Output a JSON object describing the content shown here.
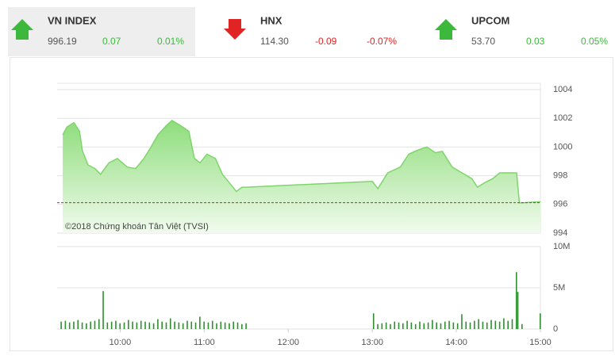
{
  "indices": [
    {
      "name": "VN INDEX",
      "value": "996.19",
      "change": "0.07",
      "pct": "0.01%",
      "color": "#3cb93c",
      "direction": "up"
    },
    {
      "name": "HNX",
      "value": "114.30",
      "change": "-0.09",
      "pct": "-0.07%",
      "color": "#e02424",
      "direction": "down"
    },
    {
      "name": "UPCOM",
      "value": "53.70",
      "change": "0.03",
      "pct": "0.05%",
      "color": "#3cb93c",
      "direction": "up"
    }
  ],
  "chart_data": [
    {
      "type": "area",
      "annotation": "©2018 Chứng khoán Tân Việt (TVSI)",
      "color": "#7fd56c",
      "x": [
        559,
        562,
        567,
        571,
        573,
        577,
        582,
        586,
        592,
        598,
        605,
        611,
        617,
        622,
        627,
        633,
        637,
        643,
        649,
        653,
        657,
        662,
        668,
        673,
        678,
        683,
        687,
        690,
        780,
        784,
        791,
        800,
        806,
        813,
        819,
        825,
        830,
        837,
        844,
        851,
        855,
        860,
        866,
        871,
        883,
        885,
        900
      ],
      "values": [
        1000.85,
        1001.4,
        1001.7,
        1001.1,
        999.75,
        998.75,
        998.5,
        998.1,
        998.9,
        999.2,
        998.6,
        998.5,
        999.2,
        1000,
        1000.85,
        1001.5,
        1001.85,
        1001.5,
        1001.1,
        999.2,
        998.9,
        999.5,
        999.2,
        998.1,
        997.5,
        996.9,
        997.2,
        997.2,
        997.6,
        997.1,
        998.2,
        998.6,
        999.5,
        999.8,
        1000,
        999.6,
        999.7,
        998.6,
        998.2,
        997.8,
        997.2,
        997.5,
        997.8,
        998.2,
        998.2,
        996.1,
        996.19
      ],
      "reference_line": 996.12,
      "reference_color": "#b03030",
      "xlim": [
        555,
        900
      ],
      "ylim": [
        994,
        1004
      ],
      "yticks": [
        994,
        996,
        998,
        1000,
        1002,
        1004
      ],
      "grid": true
    },
    {
      "type": "bar",
      "color": "#2f8f2f",
      "x": [
        558,
        561,
        564,
        567,
        570,
        573,
        576,
        579,
        582,
        585,
        588,
        591,
        594,
        597,
        600,
        603,
        606,
        609,
        612,
        615,
        618,
        621,
        624,
        627,
        630,
        633,
        636,
        639,
        642,
        645,
        648,
        651,
        654,
        657,
        660,
        663,
        666,
        669,
        672,
        675,
        678,
        681,
        684,
        687,
        690,
        781,
        784,
        787,
        790,
        793,
        796,
        799,
        802,
        805,
        808,
        811,
        814,
        817,
        820,
        823,
        826,
        829,
        832,
        835,
        838,
        841,
        844,
        847,
        850,
        853,
        856,
        859,
        862,
        865,
        868,
        871,
        874,
        877,
        880,
        883,
        884,
        887,
        900
      ],
      "values": [
        0.9,
        1.0,
        0.8,
        0.9,
        1.1,
        0.8,
        0.7,
        0.9,
        1.0,
        1.2,
        4.6,
        0.8,
        0.9,
        1.0,
        0.7,
        0.8,
        1.1,
        0.9,
        0.8,
        1.0,
        0.9,
        0.8,
        0.7,
        1.2,
        0.9,
        0.8,
        1.3,
        0.9,
        0.8,
        0.7,
        1.0,
        0.9,
        0.8,
        1.5,
        0.9,
        0.8,
        1.0,
        0.7,
        0.9,
        0.8,
        0.7,
        0.9,
        0.8,
        0.6,
        0.7,
        1.9,
        0.6,
        0.7,
        0.8,
        0.6,
        0.9,
        0.8,
        0.7,
        1.0,
        0.8,
        0.6,
        0.9,
        0.7,
        0.8,
        1.1,
        0.8,
        0.7,
        0.9,
        1.0,
        0.8,
        0.7,
        1.8,
        0.9,
        0.8,
        1.0,
        1.2,
        0.9,
        0.8,
        1.1,
        1.0,
        0.9,
        1.3,
        1.0,
        1.2,
        6.9,
        4.5,
        0.6,
        1.9
      ],
      "xlim": [
        555,
        900
      ],
      "ylim": [
        0,
        10
      ],
      "yticks": [
        0,
        {
          "value": 5,
          "label": "5M"
        },
        {
          "value": 10,
          "label": "10M"
        }
      ],
      "xticks": [
        {
          "value": 600,
          "label": "10:00"
        },
        {
          "value": 660,
          "label": "11:00"
        },
        {
          "value": 720,
          "label": "12:00"
        },
        {
          "value": 780,
          "label": "13:00"
        },
        {
          "value": 840,
          "label": "14:00"
        },
        {
          "value": 900,
          "label": "15:00"
        }
      ],
      "grid": true
    }
  ]
}
